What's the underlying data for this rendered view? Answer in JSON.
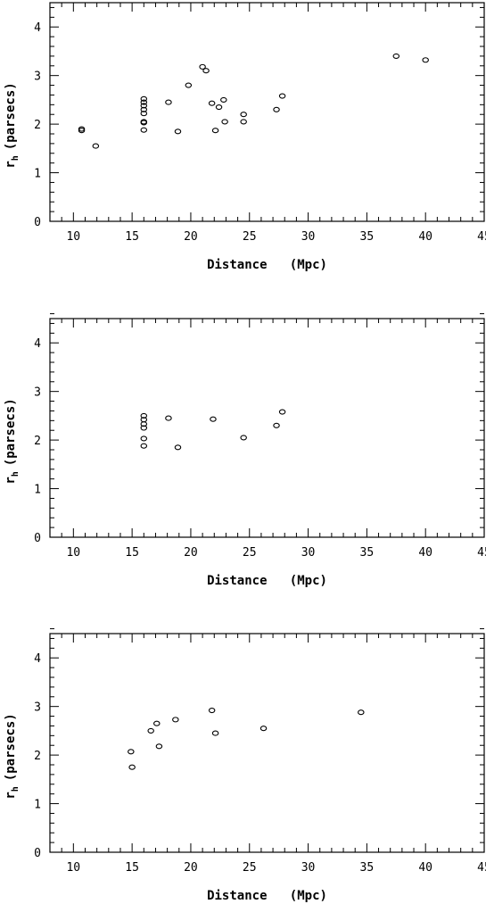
{
  "chart_data": [
    {
      "type": "scatter",
      "xlabel": "Distance   (Mpc)",
      "ylabel_main": "r",
      "ylabel_sub": "h",
      "ylabel_units": "(parsecs)",
      "xlim": [
        8,
        45
      ],
      "ylim": [
        0,
        4.5
      ],
      "x_ticks": [
        "10",
        "15",
        "20",
        "25",
        "30",
        "35",
        "40",
        "45"
      ],
      "y_ticks": [
        "0",
        "1",
        "2",
        "3",
        "4"
      ],
      "points": [
        {
          "x": 10.7,
          "y": 1.87
        },
        {
          "x": 10.7,
          "y": 1.9
        },
        {
          "x": 11.9,
          "y": 1.55
        },
        {
          "x": 16.0,
          "y": 2.52
        },
        {
          "x": 16.0,
          "y": 2.45
        },
        {
          "x": 16.0,
          "y": 2.38
        },
        {
          "x": 16.0,
          "y": 2.3
        },
        {
          "x": 16.0,
          "y": 2.22
        },
        {
          "x": 16.0,
          "y": 2.05
        },
        {
          "x": 16.0,
          "y": 2.03
        },
        {
          "x": 16.0,
          "y": 1.88
        },
        {
          "x": 18.1,
          "y": 2.45
        },
        {
          "x": 18.9,
          "y": 1.85
        },
        {
          "x": 19.8,
          "y": 2.8
        },
        {
          "x": 21.0,
          "y": 3.18
        },
        {
          "x": 21.3,
          "y": 3.1
        },
        {
          "x": 21.8,
          "y": 2.43
        },
        {
          "x": 22.1,
          "y": 1.87
        },
        {
          "x": 22.4,
          "y": 2.35
        },
        {
          "x": 22.8,
          "y": 2.5
        },
        {
          "x": 22.9,
          "y": 2.05
        },
        {
          "x": 24.5,
          "y": 2.2
        },
        {
          "x": 24.5,
          "y": 2.05
        },
        {
          "x": 27.3,
          "y": 2.3
        },
        {
          "x": 27.8,
          "y": 2.58
        },
        {
          "x": 37.5,
          "y": 3.4
        },
        {
          "x": 40.0,
          "y": 3.32
        }
      ]
    },
    {
      "type": "scatter",
      "xlabel": "Distance   (Mpc)",
      "ylabel_main": "r",
      "ylabel_sub": "h",
      "ylabel_units": "(parsecs)",
      "xlim": [
        8,
        45
      ],
      "ylim": [
        0,
        4.5
      ],
      "x_ticks": [
        "10",
        "15",
        "20",
        "25",
        "30",
        "35",
        "40",
        "45"
      ],
      "y_ticks": [
        "0",
        "1",
        "2",
        "3",
        "4"
      ],
      "points": [
        {
          "x": 16.0,
          "y": 2.5
        },
        {
          "x": 16.0,
          "y": 2.42
        },
        {
          "x": 16.0,
          "y": 2.33
        },
        {
          "x": 16.0,
          "y": 2.25
        },
        {
          "x": 16.0,
          "y": 2.03
        },
        {
          "x": 16.0,
          "y": 1.88
        },
        {
          "x": 18.1,
          "y": 2.45
        },
        {
          "x": 18.9,
          "y": 1.85
        },
        {
          "x": 21.9,
          "y": 2.43
        },
        {
          "x": 24.5,
          "y": 2.05
        },
        {
          "x": 27.3,
          "y": 2.3
        },
        {
          "x": 27.8,
          "y": 2.58
        }
      ]
    },
    {
      "type": "scatter",
      "xlabel": "Distance   (Mpc)",
      "ylabel_main": "r",
      "ylabel_sub": "h",
      "ylabel_units": "(parsecs)",
      "xlim": [
        8,
        45
      ],
      "ylim": [
        0,
        4.5
      ],
      "x_ticks": [
        "10",
        "15",
        "20",
        "25",
        "30",
        "35",
        "40",
        "45"
      ],
      "y_ticks": [
        "0",
        "1",
        "2",
        "3",
        "4"
      ],
      "points": [
        {
          "x": 14.9,
          "y": 2.07
        },
        {
          "x": 15.0,
          "y": 1.75
        },
        {
          "x": 16.6,
          "y": 2.5
        },
        {
          "x": 17.1,
          "y": 2.65
        },
        {
          "x": 17.3,
          "y": 2.18
        },
        {
          "x": 18.7,
          "y": 2.73
        },
        {
          "x": 21.8,
          "y": 2.92
        },
        {
          "x": 22.1,
          "y": 2.45
        },
        {
          "x": 26.2,
          "y": 2.55
        },
        {
          "x": 34.5,
          "y": 2.88
        }
      ]
    }
  ]
}
